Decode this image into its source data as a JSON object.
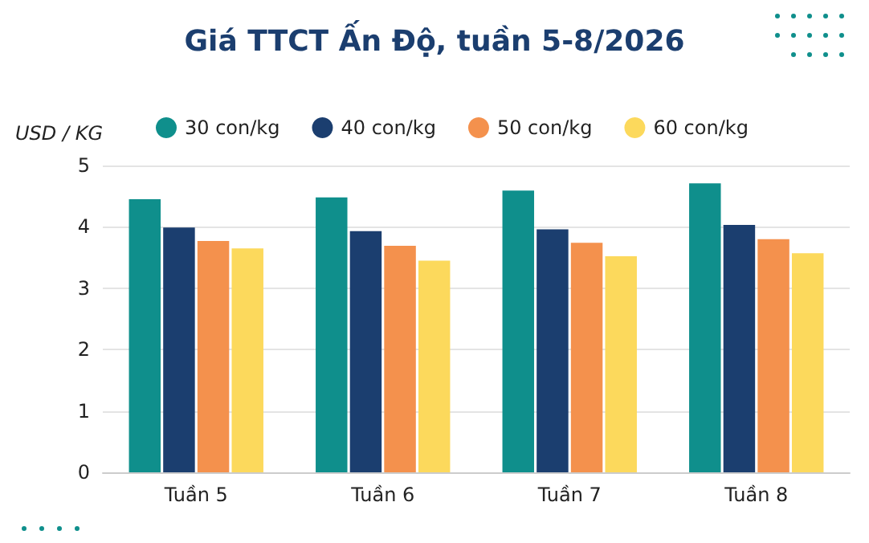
{
  "chart_data": {
    "type": "bar",
    "title": "Giá TTCT Ấn Độ, tuần 5-8/2026",
    "ylabel": "USD / KG",
    "categories": [
      "Tuần 5",
      "Tuần 6",
      "Tuần 7",
      "Tuần 8"
    ],
    "series": [
      {
        "name": "30 con/kg",
        "color": "#0f8f8c",
        "values": [
          4.45,
          4.48,
          4.59,
          4.71
        ]
      },
      {
        "name": "40 con/kg",
        "color": "#1b3e6f",
        "values": [
          3.99,
          3.93,
          3.96,
          4.03
        ]
      },
      {
        "name": "50 con/kg",
        "color": "#f4914d",
        "values": [
          3.77,
          3.69,
          3.74,
          3.8
        ]
      },
      {
        "name": "60 con/kg",
        "color": "#fcd95c",
        "values": [
          3.65,
          3.45,
          3.52,
          3.57
        ]
      }
    ],
    "ylim": [
      0,
      5
    ],
    "yticks": [
      0,
      1,
      2,
      3,
      4,
      5
    ],
    "grid": "y",
    "legend": "top"
  }
}
